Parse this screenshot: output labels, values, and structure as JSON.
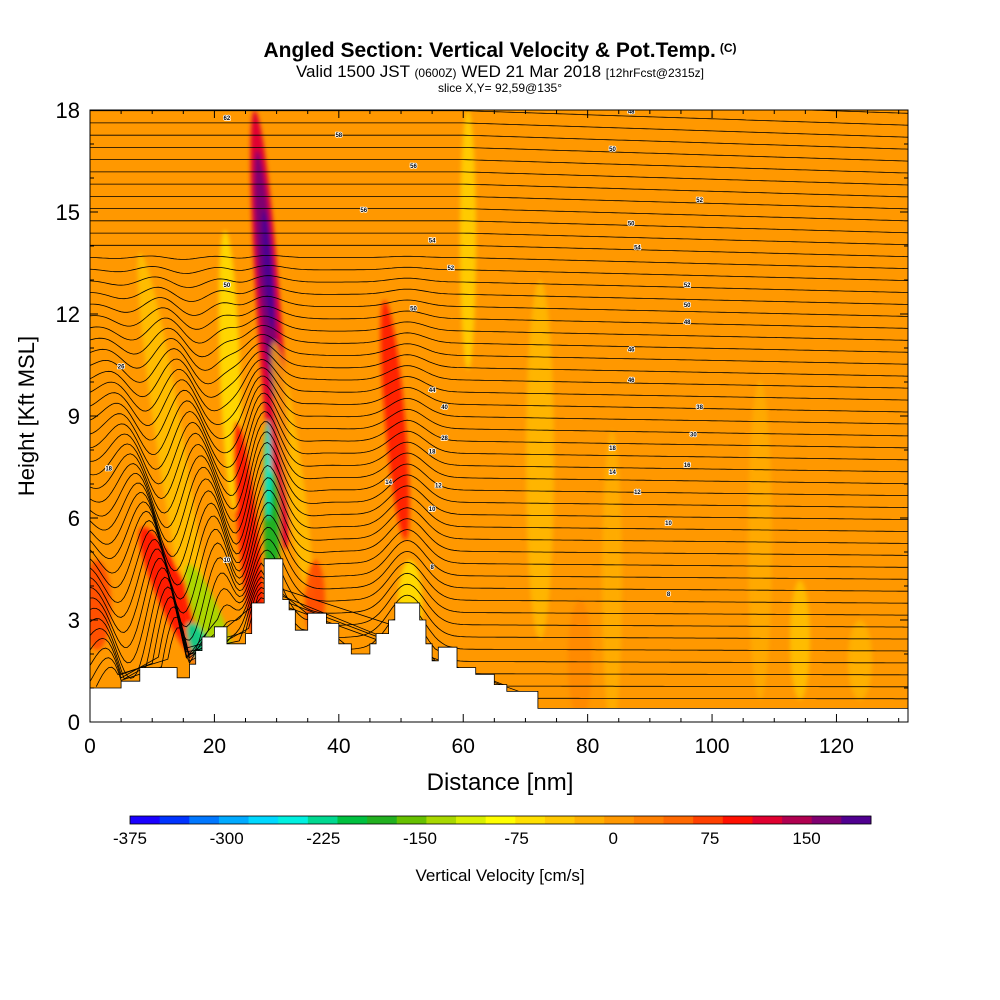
{
  "title": {
    "main": "Angled Section: Vertical Velocity & Pot.Temp.",
    "main_units": "(C)",
    "valid_prefix": "Valid 1500 JST",
    "valid_zulu": "(0600Z)",
    "valid_date": "WED 21 Mar 2018",
    "forecast": "[12hrFcst@2315z]",
    "slice": "slice X,Y= 92,59@135°"
  },
  "chart_data": {
    "type": "heatmap",
    "xlabel": "Distance [nm]",
    "ylabel": "Height [Kft MSL]",
    "xlim": [
      0,
      131.5
    ],
    "ylim": [
      0,
      18
    ],
    "xticks": [
      "0",
      "20",
      "40",
      "60",
      "80",
      "100",
      "120"
    ],
    "xtick_values": [
      0,
      20,
      40,
      60,
      80,
      100,
      120
    ],
    "yticks": [
      "0",
      "3",
      "6",
      "9",
      "12",
      "15",
      "18"
    ],
    "ytick_values": [
      0,
      3,
      6,
      9,
      12,
      15,
      18
    ],
    "colorbar": {
      "label": "Vertical Velocity [cm/s]",
      "tick_labels": [
        "-375",
        "-300",
        "-225",
        "-150",
        "-75",
        "0",
        "75",
        "150"
      ],
      "tick_values": [
        -375,
        -300,
        -225,
        -150,
        -75,
        0,
        75,
        150
      ],
      "min": -375,
      "max": 200,
      "colors": [
        "#1a00ff",
        "#0033ff",
        "#0077ff",
        "#00aaff",
        "#00d8ff",
        "#00f0e0",
        "#00d890",
        "#00c040",
        "#22b020",
        "#66c000",
        "#a8d800",
        "#d8f000",
        "#ffff00",
        "#ffe000",
        "#ffc800",
        "#ffb000",
        "#ff9800",
        "#ff8000",
        "#ff6800",
        "#ff4000",
        "#ff1000",
        "#e00030",
        "#b00050",
        "#800070",
        "#500090"
      ]
    },
    "terrain_kft": [
      [
        0,
        1
      ],
      [
        5,
        1
      ],
      [
        5,
        1.2
      ],
      [
        8,
        1.2
      ],
      [
        8,
        1.6
      ],
      [
        14,
        1.6
      ],
      [
        14,
        1.3
      ],
      [
        16,
        1.3
      ],
      [
        16,
        1.7
      ],
      [
        17,
        1.7
      ],
      [
        17,
        2.1
      ],
      [
        18,
        2.1
      ],
      [
        18,
        2.5
      ],
      [
        20,
        2.5
      ],
      [
        20,
        2.8
      ],
      [
        22,
        2.8
      ],
      [
        22,
        2.3
      ],
      [
        25,
        2.3
      ],
      [
        25,
        2.6
      ],
      [
        26,
        2.6
      ],
      [
        26,
        3.5
      ],
      [
        28,
        3.5
      ],
      [
        28,
        4.8
      ],
      [
        31,
        4.8
      ],
      [
        31,
        3.6
      ],
      [
        32,
        3.6
      ],
      [
        32,
        3.3
      ],
      [
        33,
        3.3
      ],
      [
        33,
        2.7
      ],
      [
        35,
        2.7
      ],
      [
        35,
        3.2
      ],
      [
        38,
        3.2
      ],
      [
        38,
        2.9
      ],
      [
        40,
        2.9
      ],
      [
        40,
        2.3
      ],
      [
        42,
        2.3
      ],
      [
        42,
        2.0
      ],
      [
        45,
        2.0
      ],
      [
        45,
        2.3
      ],
      [
        46,
        2.3
      ],
      [
        46,
        2.6
      ],
      [
        48,
        2.6
      ],
      [
        48,
        3.0
      ],
      [
        49,
        3.0
      ],
      [
        49,
        3.5
      ],
      [
        53,
        3.5
      ],
      [
        53,
        3.0
      ],
      [
        54,
        3.0
      ],
      [
        54,
        2.3
      ],
      [
        55,
        2.3
      ],
      [
        55,
        1.8
      ],
      [
        56,
        1.8
      ],
      [
        56,
        2.2
      ],
      [
        59,
        2.2
      ],
      [
        59,
        1.6
      ],
      [
        62,
        1.6
      ],
      [
        62,
        1.4
      ],
      [
        65,
        1.4
      ],
      [
        65,
        1.1
      ],
      [
        67,
        1.1
      ],
      [
        67,
        0.9
      ],
      [
        72,
        0.9
      ],
      [
        72,
        0.4
      ],
      [
        131.5,
        0.4
      ]
    ],
    "contour_labels": [
      {
        "x": 22,
        "y": 17.7,
        "text": "62"
      },
      {
        "x": 40,
        "y": 17.2,
        "text": "58"
      },
      {
        "x": 87,
        "y": 17.9,
        "text": "48"
      },
      {
        "x": 84,
        "y": 16.8,
        "text": "50"
      },
      {
        "x": 52,
        "y": 16.3,
        "text": "56"
      },
      {
        "x": 98,
        "y": 15.3,
        "text": "52"
      },
      {
        "x": 44,
        "y": 15.0,
        "text": "56"
      },
      {
        "x": 87,
        "y": 14.6,
        "text": "50"
      },
      {
        "x": 55,
        "y": 14.1,
        "text": "54"
      },
      {
        "x": 88,
        "y": 13.9,
        "text": "54"
      },
      {
        "x": 58,
        "y": 13.3,
        "text": "52"
      },
      {
        "x": 96,
        "y": 12.8,
        "text": "52"
      },
      {
        "x": 22,
        "y": 12.8,
        "text": "50"
      },
      {
        "x": 52,
        "y": 12.1,
        "text": "50"
      },
      {
        "x": 96,
        "y": 12.2,
        "text": "50"
      },
      {
        "x": 96,
        "y": 11.7,
        "text": "48"
      },
      {
        "x": 87,
        "y": 10.9,
        "text": "46"
      },
      {
        "x": 5,
        "y": 10.4,
        "text": "26"
      },
      {
        "x": 87,
        "y": 10.0,
        "text": "46"
      },
      {
        "x": 55,
        "y": 9.7,
        "text": "44"
      },
      {
        "x": 57,
        "y": 9.2,
        "text": "40"
      },
      {
        "x": 98,
        "y": 9.2,
        "text": "38"
      },
      {
        "x": 97,
        "y": 8.4,
        "text": "30"
      },
      {
        "x": 57,
        "y": 8.3,
        "text": "28"
      },
      {
        "x": 84,
        "y": 8.0,
        "text": "18"
      },
      {
        "x": 55,
        "y": 7.9,
        "text": "18"
      },
      {
        "x": 96,
        "y": 7.5,
        "text": "16"
      },
      {
        "x": 3,
        "y": 7.4,
        "text": "18"
      },
      {
        "x": 84,
        "y": 7.3,
        "text": "14"
      },
      {
        "x": 48,
        "y": 7.0,
        "text": "14"
      },
      {
        "x": 56,
        "y": 6.9,
        "text": "12"
      },
      {
        "x": 88,
        "y": 6.7,
        "text": "12"
      },
      {
        "x": 55,
        "y": 6.2,
        "text": "10"
      },
      {
        "x": 93,
        "y": 5.8,
        "text": "10"
      },
      {
        "x": 22,
        "y": 4.7,
        "text": "10"
      },
      {
        "x": 55,
        "y": 4.5,
        "text": "8"
      },
      {
        "x": 93,
        "y": 3.7,
        "text": "8"
      }
    ]
  }
}
